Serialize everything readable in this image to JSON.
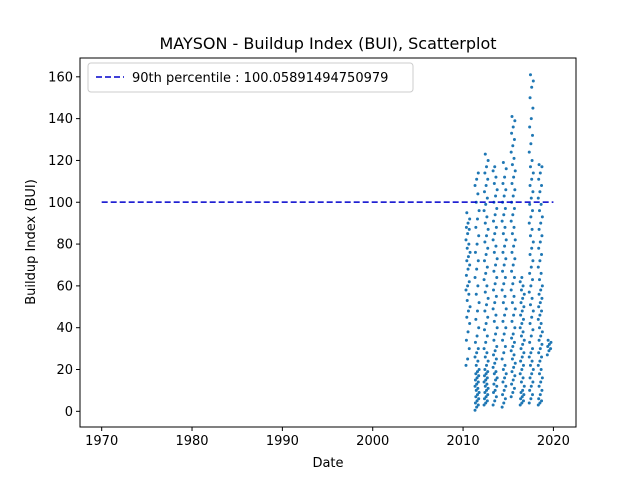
{
  "chart_data": {
    "type": "scatter",
    "title": "MAYSON - Buildup Index (BUI), Scatterplot",
    "xlabel": "Date",
    "ylabel": "Buildup Index (BUI)",
    "xlim": [
      1967.6,
      2022.5
    ],
    "ylim": [
      -7.5,
      169.0
    ],
    "xticks": [
      1970,
      1980,
      1990,
      2000,
      2010,
      2020
    ],
    "yticks": [
      0,
      20,
      40,
      60,
      80,
      100,
      120,
      140,
      160
    ],
    "grid": false,
    "legend": {
      "placement": "top-left",
      "entries": [
        "90th percentile : 100.05891494750979"
      ]
    },
    "reference_line": {
      "label": "90th percentile : 100.05891494750979",
      "y": 100.05891494750979,
      "x_range": [
        1970,
        2020
      ],
      "style": "dashed",
      "color": "#0000cc"
    },
    "series": [
      {
        "color": "#1f77b4",
        "note_seasons": [
          {
            "x": 2010.55,
            "values": [
              22,
              25,
              30,
              34,
              38,
              42,
              45,
              48,
              50,
              53,
              56,
              58,
              60,
              62,
              65,
              68,
              70,
              72,
              74,
              76,
              78,
              80,
              82,
              85,
              87,
              88,
              90,
              92,
              95
            ]
          },
          {
            "x": 2011.55,
            "values": [
              0.5,
              2,
              3,
              4,
              5,
              6,
              7,
              8,
              9,
              10,
              11,
              12,
              13,
              14,
              15,
              16,
              17,
              18,
              19,
              20,
              22,
              24,
              26,
              28,
              30,
              33,
              36,
              40,
              44,
              48,
              52,
              56,
              60,
              64,
              68,
              72,
              76,
              80,
              84,
              88,
              92,
              96,
              100,
              104,
              108,
              111,
              114
            ]
          },
          {
            "x": 2012.55,
            "values": [
              3,
              4,
              5,
              6,
              7,
              8,
              9,
              10,
              11,
              12,
              13,
              14,
              15,
              16,
              17,
              18,
              19,
              20,
              22,
              24,
              26,
              28,
              30,
              33,
              36,
              39,
              42,
              45,
              48,
              51,
              54,
              57,
              60,
              63,
              66,
              69,
              72,
              75,
              78,
              81,
              84,
              87,
              90,
              93,
              96,
              99,
              102,
              105,
              108,
              111,
              114,
              117,
              120,
              123
            ]
          },
          {
            "x": 2013.55,
            "values": [
              3,
              5,
              7,
              9,
              10,
              12,
              13,
              15,
              16,
              18,
              19,
              21,
              23,
              25,
              27,
              29,
              31,
              34,
              37,
              40,
              43,
              46,
              49,
              52,
              55,
              58,
              61,
              64,
              67,
              70,
              73,
              76,
              79,
              82,
              85,
              88,
              91,
              94,
              97,
              100,
              103,
              106,
              109,
              112,
              115,
              117
            ]
          },
          {
            "x": 2014.55,
            "values": [
              2,
              4,
              6,
              8,
              10,
              12,
              14,
              16,
              18,
              20,
              22,
              25,
              28,
              31,
              34,
              37,
              40,
              43,
              46,
              49,
              52,
              55,
              58,
              61,
              64,
              67,
              70,
              73,
              76,
              79,
              82,
              85,
              88,
              91,
              94,
              97,
              100,
              103,
              106,
              109,
              112,
              116,
              119
            ]
          },
          {
            "x": 2015.55,
            "values": [
              7,
              9,
              11,
              13,
              15,
              17,
              19,
              21,
              23,
              25,
              27,
              29,
              31,
              33,
              35,
              37,
              40,
              43,
              46,
              49,
              52,
              55,
              58,
              61,
              64,
              67,
              70,
              73,
              76,
              79,
              82,
              85,
              88,
              91,
              94,
              97,
              100,
              103,
              106,
              109,
              112,
              115,
              118,
              121,
              124,
              127,
              130,
              133,
              136,
              139,
              141
            ]
          },
          {
            "x": 2016.55,
            "values": [
              3,
              4,
              5,
              6,
              7,
              8,
              9,
              10,
              12,
              14,
              16,
              18,
              20,
              22,
              24,
              26,
              28,
              30,
              32,
              34,
              36,
              38,
              40,
              42,
              44,
              46,
              48,
              50,
              52,
              54,
              56,
              58,
              60,
              62,
              64
            ]
          },
          {
            "x": 2017.55,
            "values": [
              4,
              6,
              8,
              10,
              12,
              14,
              16,
              18,
              20,
              22,
              24,
              26,
              28,
              30,
              33,
              36,
              39,
              42,
              45,
              48,
              51,
              54,
              57,
              60,
              63,
              66,
              69,
              72,
              75,
              78,
              81,
              84,
              87,
              90,
              93,
              96,
              99,
              102,
              105,
              108,
              111,
              114,
              117,
              120,
              124,
              128,
              132,
              136,
              140,
              145,
              150,
              155,
              158,
              161
            ]
          },
          {
            "x": 2018.55,
            "values": [
              3,
              4,
              5,
              6,
              8,
              10,
              12,
              14,
              16,
              18,
              20,
              22,
              24,
              26,
              28,
              30,
              32,
              34,
              36,
              38,
              40,
              42,
              44,
              46,
              48,
              50,
              52,
              54,
              56,
              58,
              60,
              63,
              66,
              69,
              72,
              75,
              78,
              81,
              84,
              87,
              90,
              93,
              96,
              99,
              102,
              105,
              108,
              111,
              114,
              117,
              118
            ]
          },
          {
            "x": 2019.55,
            "values": [
              27,
              29,
              30,
              31,
              32,
              33,
              34
            ]
          }
        ]
      }
    ]
  }
}
